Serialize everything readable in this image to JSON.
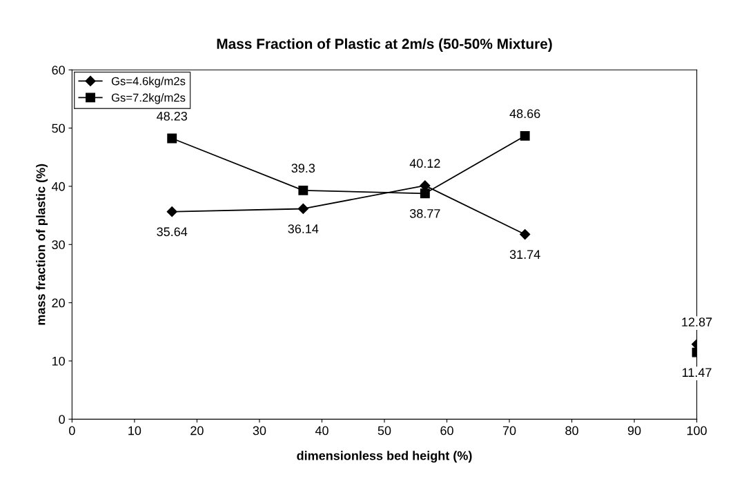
{
  "chart_data": {
    "type": "line",
    "title": "Mass Fraction of Plastic at 2m/s (50-50% Mixture)",
    "xlabel": "dimensionless bed height (%)",
    "ylabel": "mass fraction of plastic (%)",
    "series": [
      {
        "name": "Gs=4.6kg/m2s",
        "color": "#000000",
        "marker": "diamond",
        "x": [
          16,
          37,
          56.5,
          72.5
        ],
        "values": [
          35.64,
          36.14,
          40.12,
          31.74
        ]
      },
      {
        "name": "Gs=7.2kg/m2s",
        "color": "#000000",
        "marker": "square",
        "x": [
          16,
          37,
          56.5,
          72.5
        ],
        "values": [
          48.23,
          39.3,
          38.77,
          48.66
        ]
      },
      {
        "type": "scatter",
        "color": "#000000",
        "marker": "diamond",
        "x": [
          100
        ],
        "values": [
          12.87
        ]
      },
      {
        "type": "scatter",
        "color": "#000000",
        "marker": "square",
        "x": [
          100
        ],
        "values": [
          11.47
        ]
      }
    ],
    "xlim": [
      0,
      100
    ],
    "xticks": [
      0,
      10,
      20,
      30,
      40,
      50,
      60,
      70,
      80,
      90,
      100
    ],
    "ylim": [
      0,
      60
    ],
    "yticks": [
      0,
      10,
      20,
      30,
      40,
      50,
      60
    ],
    "data_labels": true,
    "grid": false,
    "legend": "top left",
    "line_style": "solid"
  }
}
